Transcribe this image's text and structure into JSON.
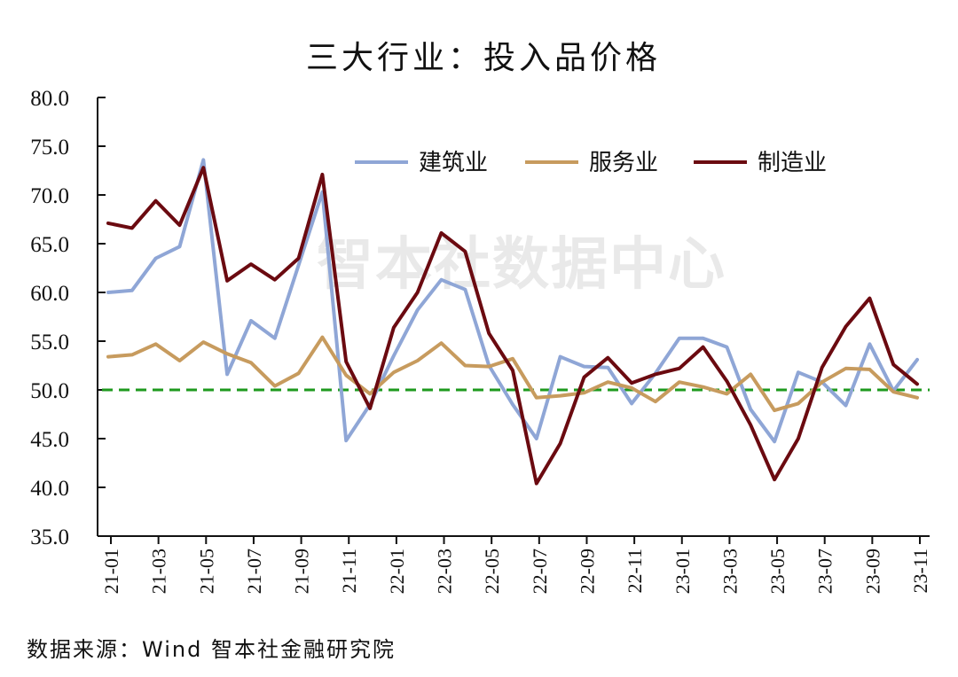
{
  "watermark": "智本社数据中心",
  "source": "数据来源：Wind 智本社金融研究院",
  "chart_data": {
    "type": "line",
    "title": "三大行业：投入品价格",
    "xlabel": "",
    "ylabel": "",
    "ylim": [
      35,
      80
    ],
    "yticks": [
      "35.0",
      "40.0",
      "45.0",
      "50.0",
      "55.0",
      "60.0",
      "65.0",
      "70.0",
      "75.0",
      "80.0"
    ],
    "x": [
      "21-01",
      "21-02",
      "21-03",
      "21-04",
      "21-05",
      "21-06",
      "21-07",
      "21-08",
      "21-09",
      "21-10",
      "21-11",
      "21-12",
      "22-01",
      "22-02",
      "22-03",
      "22-04",
      "22-05",
      "22-06",
      "22-07",
      "22-08",
      "22-09",
      "22-10",
      "22-11",
      "22-12",
      "23-01",
      "23-02",
      "23-03",
      "23-04",
      "23-05",
      "23-06",
      "23-07",
      "23-08",
      "23-09",
      "23-10",
      "23-11"
    ],
    "xticks_shown": [
      "21-01",
      "21-03",
      "21-05",
      "21-07",
      "21-09",
      "21-11",
      "22-01",
      "22-03",
      "22-05",
      "22-07",
      "22-09",
      "22-11",
      "23-01",
      "23-03",
      "23-05",
      "23-07",
      "23-09",
      "23-11"
    ],
    "legend_position": "top-center",
    "grid": false,
    "reference_line": {
      "value": 50,
      "color": "#1e9a1e",
      "style": "dashed"
    },
    "series": [
      {
        "name": "建筑业",
        "color": "#8fa6d6",
        "values": [
          60.0,
          60.2,
          63.5,
          64.7,
          73.6,
          51.6,
          57.1,
          55.3,
          62.8,
          70.3,
          44.8,
          48.5,
          53.5,
          58.2,
          61.3,
          60.3,
          52.5,
          48.5,
          45.0,
          53.4,
          52.4,
          52.3,
          48.6,
          51.7,
          55.3,
          55.3,
          54.4,
          48.0,
          44.7,
          51.8,
          50.8,
          48.4,
          54.7,
          49.9,
          53.1
        ]
      },
      {
        "name": "服务业",
        "color": "#c79b5e",
        "values": [
          53.4,
          53.6,
          54.7,
          53.0,
          54.9,
          53.7,
          52.8,
          50.4,
          51.7,
          55.4,
          51.5,
          49.6,
          51.8,
          53.0,
          54.8,
          52.5,
          52.4,
          53.2,
          49.2,
          49.4,
          49.7,
          50.8,
          50.2,
          48.8,
          50.8,
          50.3,
          49.6,
          51.6,
          47.9,
          48.6,
          50.8,
          52.2,
          52.1,
          49.8,
          49.2
        ]
      },
      {
        "name": "制造业",
        "color": "#6b0a10",
        "values": [
          67.1,
          66.6,
          69.4,
          66.9,
          72.8,
          61.2,
          62.9,
          61.3,
          63.5,
          72.1,
          52.9,
          48.1,
          56.4,
          60.0,
          66.1,
          64.2,
          55.8,
          52.0,
          40.4,
          44.5,
          51.3,
          53.3,
          50.7,
          51.6,
          52.2,
          54.4,
          50.9,
          46.4,
          40.8,
          45.0,
          52.3,
          56.5,
          59.4,
          52.6,
          50.6
        ]
      }
    ]
  }
}
